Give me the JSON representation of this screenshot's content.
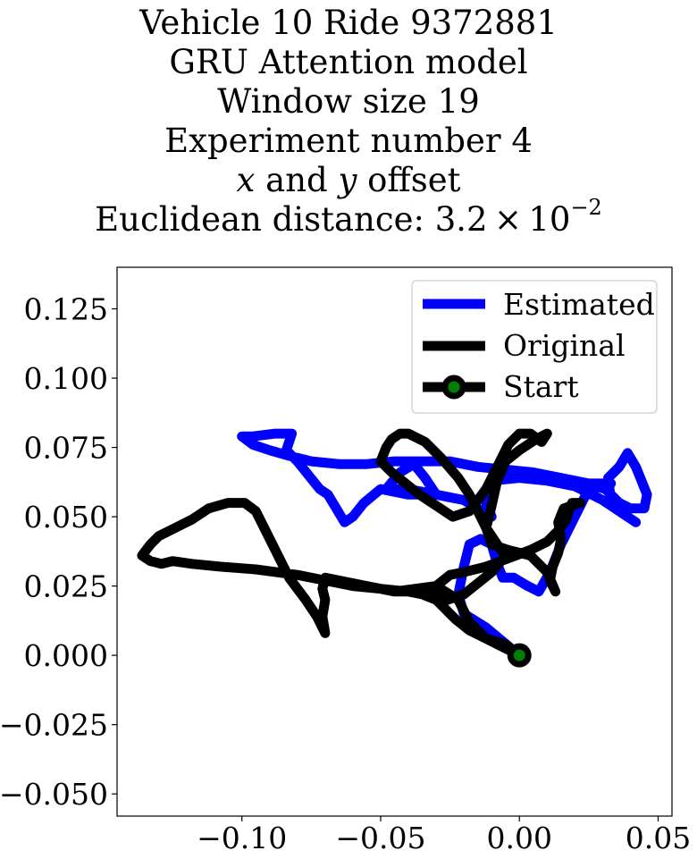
{
  "title": {
    "line1": "Vehicle 10 Ride 9372881",
    "line2": "GRU Attention model",
    "line3": "Window size 19",
    "line4": "Experiment number 4",
    "line5_var_x": "x",
    "line5_and": "and",
    "line5_var_y": "y",
    "line5_rest": "offset",
    "line6_prefix": "Euclidean distance: 3.2 × 10",
    "line6_exp": "−2"
  },
  "chart_data": {
    "type": "line",
    "xlim": [
      -0.145,
      0.055
    ],
    "ylim": [
      -0.058,
      0.14
    ],
    "xticks": [
      -0.1,
      -0.05,
      0.0,
      0.05
    ],
    "xtick_labels": [
      "−0.10",
      "−0.05",
      "0.00",
      "0.05"
    ],
    "yticks": [
      0.125,
      0.1,
      0.075,
      0.05,
      0.025,
      0.0,
      -0.025,
      -0.05
    ],
    "ytick_labels": [
      "0.125",
      "0.100",
      "0.075",
      "0.050",
      "0.025",
      "0.000",
      "−0.025",
      "−0.050"
    ],
    "grid": false,
    "legend_position": "upper right",
    "series": [
      {
        "name": "Estimated",
        "color": "#0000ff",
        "points": [
          [
            0.0,
            0.0
          ],
          [
            -0.012,
            0.01
          ],
          [
            -0.02,
            0.015
          ],
          [
            -0.022,
            0.022
          ],
          [
            -0.02,
            0.032
          ],
          [
            -0.018,
            0.04
          ],
          [
            -0.014,
            0.042
          ],
          [
            -0.01,
            0.04
          ],
          [
            -0.008,
            0.033
          ],
          [
            -0.006,
            0.028
          ],
          [
            -0.002,
            0.028
          ],
          [
            0.003,
            0.025
          ],
          [
            0.007,
            0.023
          ],
          [
            0.011,
            0.03
          ],
          [
            0.015,
            0.04
          ],
          [
            0.02,
            0.05
          ],
          [
            0.024,
            0.058
          ],
          [
            0.027,
            0.061
          ],
          [
            0.031,
            0.06
          ],
          [
            0.036,
            0.055
          ],
          [
            0.04,
            0.053
          ],
          [
            0.045,
            0.053
          ],
          [
            0.046,
            0.058
          ],
          [
            0.042,
            0.068
          ],
          [
            0.039,
            0.073
          ],
          [
            0.036,
            0.068
          ],
          [
            0.032,
            0.064
          ],
          [
            0.033,
            0.056
          ],
          [
            0.036,
            0.052
          ],
          [
            0.042,
            0.048
          ],
          [
            0.03,
            0.056
          ],
          [
            0.02,
            0.061
          ],
          [
            0.01,
            0.063
          ],
          [
            0.0,
            0.064
          ],
          [
            -0.01,
            0.063
          ],
          [
            -0.012,
            0.055
          ],
          [
            -0.01,
            0.05
          ],
          [
            -0.02,
            0.056
          ],
          [
            -0.03,
            0.058
          ],
          [
            -0.04,
            0.06
          ],
          [
            -0.048,
            0.06
          ],
          [
            -0.043,
            0.066
          ],
          [
            -0.038,
            0.069
          ],
          [
            -0.034,
            0.064
          ],
          [
            -0.03,
            0.058
          ],
          [
            -0.04,
            0.058
          ],
          [
            -0.05,
            0.06
          ],
          [
            -0.056,
            0.055
          ],
          [
            -0.06,
            0.05
          ],
          [
            -0.063,
            0.048
          ],
          [
            -0.066,
            0.053
          ],
          [
            -0.069,
            0.058
          ],
          [
            -0.072,
            0.06
          ],
          [
            -0.076,
            0.065
          ],
          [
            -0.08,
            0.07
          ],
          [
            -0.084,
            0.074
          ],
          [
            -0.082,
            0.08
          ],
          [
            -0.088,
            0.08
          ],
          [
            -0.096,
            0.079
          ],
          [
            -0.1,
            0.079
          ],
          [
            -0.096,
            0.076
          ],
          [
            -0.09,
            0.074
          ],
          [
            -0.083,
            0.072
          ],
          [
            -0.075,
            0.07
          ],
          [
            -0.065,
            0.069
          ],
          [
            -0.055,
            0.069
          ],
          [
            -0.045,
            0.07
          ],
          [
            -0.035,
            0.07
          ],
          [
            -0.025,
            0.07
          ],
          [
            -0.015,
            0.068
          ],
          [
            -0.005,
            0.067
          ],
          [
            0.005,
            0.066
          ],
          [
            0.015,
            0.064
          ],
          [
            0.025,
            0.062
          ],
          [
            0.033,
            0.062
          ]
        ]
      },
      {
        "name": "Original",
        "color": "#000000",
        "points": [
          [
            0.0,
            0.0
          ],
          [
            -0.005,
            0.004
          ],
          [
            -0.012,
            0.006
          ],
          [
            -0.018,
            0.009
          ],
          [
            -0.023,
            0.013
          ],
          [
            -0.027,
            0.017
          ],
          [
            -0.03,
            0.02
          ],
          [
            -0.035,
            0.022
          ],
          [
            -0.04,
            0.023
          ],
          [
            -0.045,
            0.023
          ],
          [
            -0.05,
            0.024
          ],
          [
            -0.055,
            0.025
          ],
          [
            -0.06,
            0.026
          ],
          [
            -0.065,
            0.027
          ],
          [
            -0.07,
            0.028
          ],
          [
            -0.071,
            0.024
          ],
          [
            -0.07,
            0.02
          ],
          [
            -0.071,
            0.014
          ],
          [
            -0.07,
            0.008
          ],
          [
            -0.073,
            0.014
          ],
          [
            -0.077,
            0.02
          ],
          [
            -0.08,
            0.024
          ],
          [
            -0.083,
            0.028
          ],
          [
            -0.086,
            0.034
          ],
          [
            -0.089,
            0.04
          ],
          [
            -0.092,
            0.046
          ],
          [
            -0.095,
            0.052
          ],
          [
            -0.099,
            0.055
          ],
          [
            -0.105,
            0.055
          ],
          [
            -0.112,
            0.053
          ],
          [
            -0.118,
            0.049
          ],
          [
            -0.124,
            0.046
          ],
          [
            -0.13,
            0.043
          ],
          [
            -0.133,
            0.04
          ],
          [
            -0.136,
            0.036
          ],
          [
            -0.133,
            0.034
          ],
          [
            -0.129,
            0.033
          ],
          [
            -0.125,
            0.034
          ],
          [
            -0.118,
            0.033
          ],
          [
            -0.108,
            0.032
          ],
          [
            -0.095,
            0.031
          ],
          [
            -0.08,
            0.029
          ],
          [
            -0.07,
            0.027
          ],
          [
            -0.06,
            0.025
          ],
          [
            -0.05,
            0.024
          ],
          [
            -0.04,
            0.023
          ],
          [
            -0.03,
            0.025
          ],
          [
            -0.025,
            0.029
          ],
          [
            -0.02,
            0.03
          ],
          [
            -0.012,
            0.032
          ],
          [
            -0.004,
            0.035
          ],
          [
            0.004,
            0.038
          ],
          [
            0.01,
            0.041
          ],
          [
            0.014,
            0.045
          ],
          [
            0.017,
            0.049
          ],
          [
            0.018,
            0.053
          ],
          [
            0.019,
            0.055
          ],
          [
            0.022,
            0.055
          ],
          [
            0.016,
            0.053
          ],
          [
            0.014,
            0.048
          ],
          [
            0.015,
            0.042
          ],
          [
            0.014,
            0.037
          ],
          [
            0.012,
            0.032
          ],
          [
            0.011,
            0.027
          ],
          [
            0.013,
            0.023
          ],
          [
            0.01,
            0.03
          ],
          [
            0.004,
            0.036
          ],
          [
            -0.004,
            0.038
          ],
          [
            -0.01,
            0.04
          ],
          [
            -0.012,
            0.046
          ],
          [
            -0.01,
            0.054
          ],
          [
            -0.008,
            0.063
          ],
          [
            -0.005,
            0.07
          ],
          [
            0.0,
            0.074
          ],
          [
            0.006,
            0.078
          ],
          [
            0.01,
            0.08
          ],
          [
            0.008,
            0.077
          ],
          [
            0.004,
            0.08
          ],
          [
            0.0,
            0.08
          ],
          [
            -0.004,
            0.076
          ],
          [
            -0.008,
            0.068
          ],
          [
            -0.012,
            0.06
          ],
          [
            -0.018,
            0.052
          ],
          [
            -0.024,
            0.05
          ],
          [
            -0.03,
            0.054
          ],
          [
            -0.036,
            0.058
          ],
          [
            -0.041,
            0.062
          ],
          [
            -0.046,
            0.066
          ],
          [
            -0.05,
            0.07
          ],
          [
            -0.048,
            0.075
          ],
          [
            -0.046,
            0.078
          ],
          [
            -0.043,
            0.08
          ],
          [
            -0.04,
            0.08
          ],
          [
            -0.034,
            0.077
          ],
          [
            -0.028,
            0.071
          ],
          [
            -0.022,
            0.064
          ],
          [
            -0.018,
            0.058
          ],
          [
            -0.015,
            0.052
          ],
          [
            -0.012,
            0.046
          ],
          [
            -0.008,
            0.04
          ],
          [
            -0.005,
            0.036
          ],
          [
            -0.01,
            0.03
          ],
          [
            -0.015,
            0.026
          ],
          [
            -0.02,
            0.022
          ],
          [
            -0.026,
            0.02
          ],
          [
            -0.03,
            0.022
          ],
          [
            -0.038,
            0.023
          ],
          [
            -0.045,
            0.023
          ],
          [
            -0.03,
            0.025
          ],
          [
            -0.022,
            0.02
          ],
          [
            -0.018,
            0.012
          ],
          [
            -0.012,
            0.006
          ],
          [
            -0.006,
            0.003
          ],
          [
            0.0,
            0.0
          ]
        ]
      }
    ],
    "start_marker": {
      "name": "Start",
      "x": 0.0,
      "y": 0.0,
      "edge_color": "#000000",
      "face_color": "#008000"
    }
  }
}
